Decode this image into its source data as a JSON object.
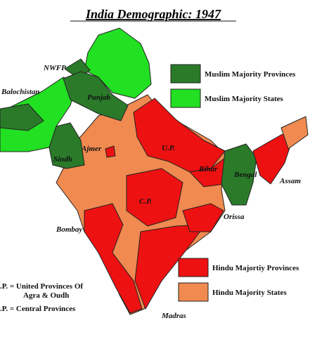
{
  "header": {
    "title": "India Demographic: 1947"
  },
  "legend": {
    "items": [
      {
        "label": "Muslim Majority Provinces"
      },
      {
        "label": "Muslim Majority States"
      },
      {
        "label": "Hindu Majortiy Provinces"
      },
      {
        "label": "Hindu Majority States"
      }
    ]
  },
  "map": {
    "labels": [
      "NWFP",
      "Balochistan",
      "Punjab",
      "Sindh",
      "Ajmer",
      "U.P.",
      "Bihar",
      "Bengal",
      "Assam",
      "C.P.",
      "Orissa",
      "Bombay",
      "Madras"
    ]
  },
  "notes": [
    "U.P. = United Provinces Of",
    "Agra & Oudh",
    "C.P. = Central Provinces"
  ]
}
